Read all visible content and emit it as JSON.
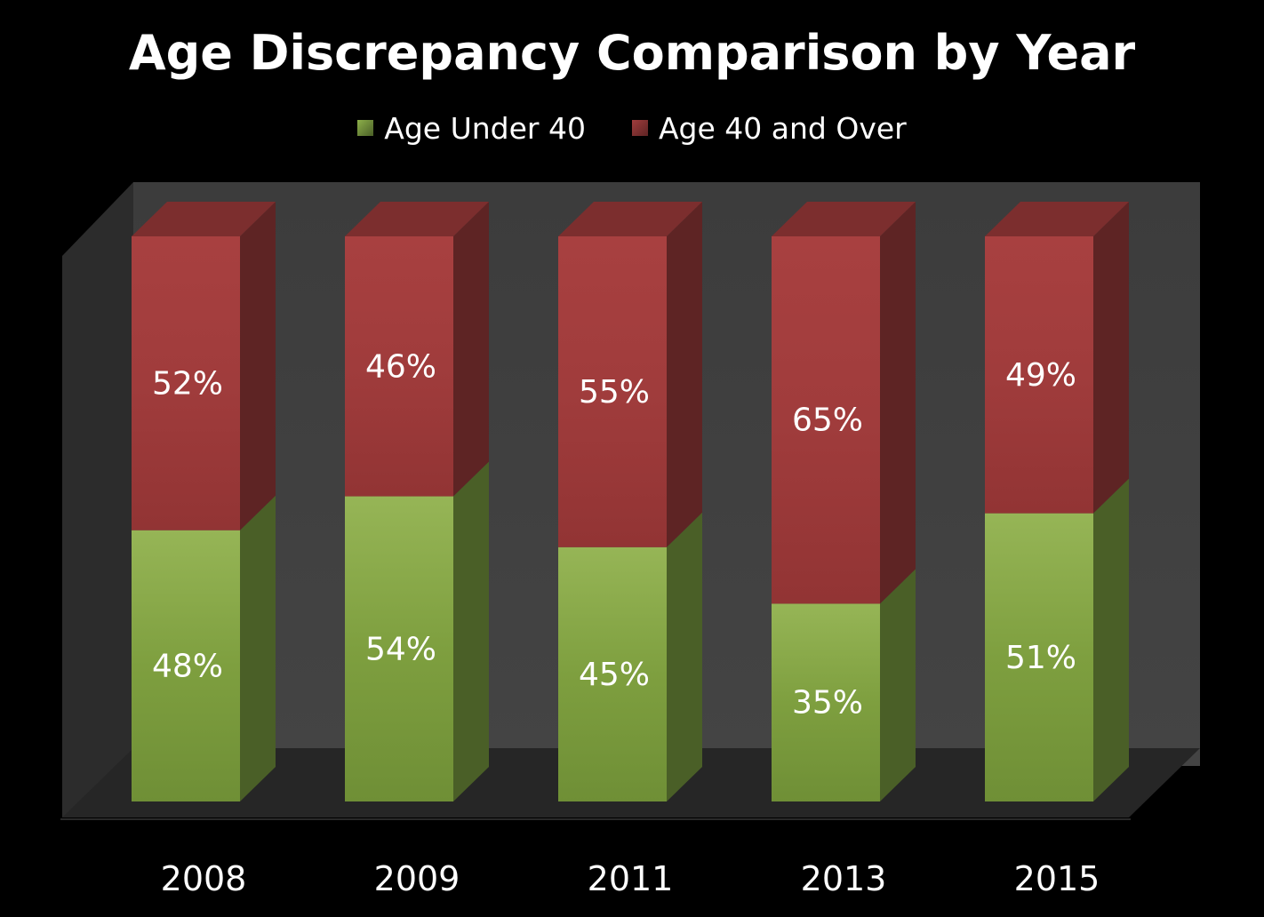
{
  "chart_data": {
    "type": "bar",
    "stacked": true,
    "three_d": true,
    "title": "Age Discrepancy Comparison by Year",
    "categories": [
      "2008",
      "2009",
      "2011",
      "2013",
      "2015"
    ],
    "series": [
      {
        "name": "Age Under 40",
        "values": [
          48,
          54,
          45,
          35,
          51
        ],
        "labels": [
          "48%",
          "54%",
          "45%",
          "35%",
          "51%"
        ],
        "color": "#7e9f3f"
      },
      {
        "name": "Age 40 and Over",
        "values": [
          52,
          46,
          55,
          65,
          49
        ],
        "labels": [
          "52%",
          "46%",
          "55%",
          "65%",
          "49%"
        ],
        "color": "#a03c3c"
      }
    ],
    "ylim": [
      0,
      100
    ],
    "unit": "%",
    "grid": false,
    "legend_position": "top"
  },
  "colors": {
    "background": "#000000",
    "back_wall": "#404040",
    "side_wall": "#2c2c2c",
    "floor": "#262626",
    "under40_front": "#7e9f3f",
    "under40_side": "#4a5f27",
    "under40_top": "#8db04a",
    "over40_front": "#a03c3c",
    "over40_side": "#5e2424",
    "over40_top": "#7c2e2e",
    "text": "#ffffff"
  }
}
